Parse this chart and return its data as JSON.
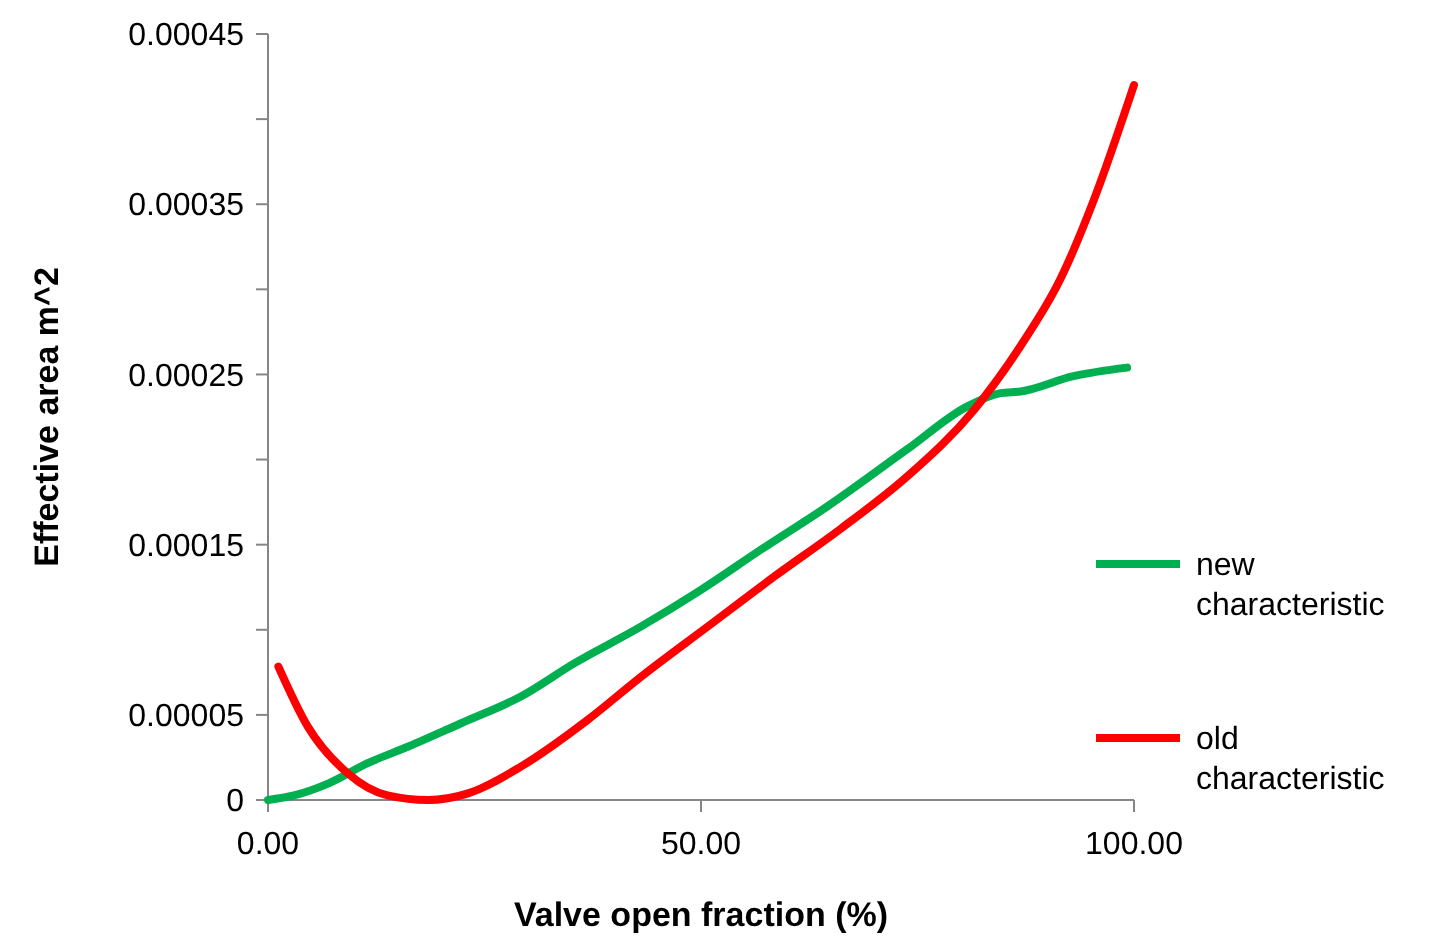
{
  "chart_data": {
    "type": "line",
    "xlabel": "Valve open fraction (%)",
    "ylabel": "Effective area m^2",
    "xlim": [
      0,
      100
    ],
    "xticks": [
      {
        "value": 0,
        "label": "0.00"
      },
      {
        "value": 50,
        "label": "50.00"
      },
      {
        "value": 100,
        "label": "100.00"
      }
    ],
    "ylim": [
      0,
      0.00045
    ],
    "yticks": [
      {
        "value": 0,
        "label": "0"
      },
      {
        "value": 5e-05,
        "label": "0.00005"
      },
      {
        "value": 0.0001,
        "label": null
      },
      {
        "value": 0.00015,
        "label": "0.00015"
      },
      {
        "value": 0.0002,
        "label": null
      },
      {
        "value": 0.00025,
        "label": "0.00025"
      },
      {
        "value": 0.0003,
        "label": null
      },
      {
        "value": 0.00035,
        "label": "0.00035"
      },
      {
        "value": 0.0004,
        "label": null
      },
      {
        "value": 0.00045,
        "label": "0.00045"
      }
    ],
    "grid": false,
    "legend": "right",
    "marker": "none",
    "line_style": "solid",
    "series": [
      {
        "name": "new characteristic",
        "color": "#00b050",
        "x": [
          0,
          3,
          7,
          11.5,
          16.2,
          22.3,
          29.2,
          35.4,
          43.1,
          50,
          56.9,
          64.6,
          73.8,
          80.8,
          84.6,
          86.9,
          93,
          99.2
        ],
        "values": [
          0,
          2.7e-06,
          9.8e-06,
          2.16e-05,
          3.14e-05,
          4.51e-05,
          6.08e-05,
          8.04e-05,
          0.000102,
          0.0001235,
          0.000147,
          0.0001725,
          0.000206,
          0.0002314,
          0.000239,
          0.00024,
          0.000249,
          0.000254
        ]
      },
      {
        "name": "old characteristic",
        "color": "#ff0000",
        "x": [
          1.2,
          4.6,
          9.2,
          13.8,
          18.5,
          23.1,
          29.2,
          36.9,
          43.1,
          50.8,
          58.5,
          66.2,
          73.8,
          81.5,
          86.9,
          91.5,
          95.4,
          100
        ],
        "values": [
          7.84e-05,
          4.31e-05,
          1.57e-05,
          2.7e-06,
          0,
          3.9e-06,
          1.96e-05,
          4.7e-05,
          7.25e-05,
          0.000102,
          0.0001314,
          0.0001596,
          0.00019,
          0.000229,
          0.0002667,
          0.000306,
          0.000353,
          0.00042
        ]
      }
    ]
  }
}
